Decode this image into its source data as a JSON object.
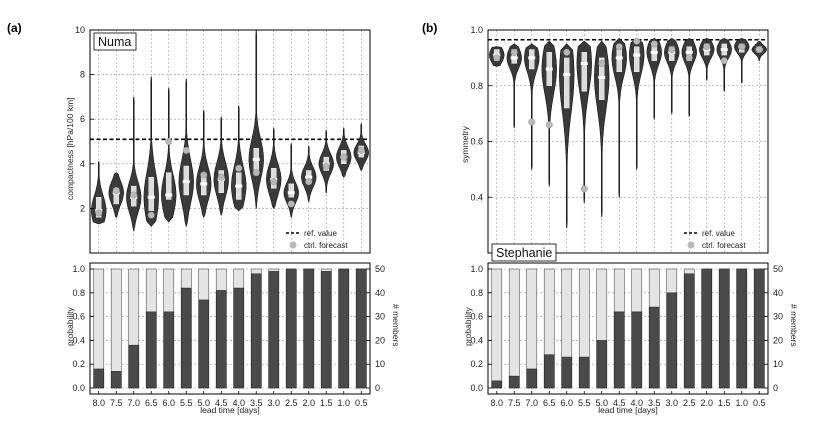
{
  "chart_data": [
    {
      "panel_label": "(a)",
      "storm": "Numa",
      "type": "violin",
      "ylabel": "compactness [hPa/100 km]",
      "ylim": [
        0,
        10
      ],
      "yticks": [
        "2",
        "4",
        "6",
        "8",
        "10"
      ],
      "categories": [
        "8.0",
        "7.5",
        "7.0",
        "6.5",
        "6.0",
        "5.5",
        "5.0",
        "4.5",
        "4.0",
        "3.5",
        "3.0",
        "2.5",
        "2.0",
        "1.5",
        "1.0",
        "0.5"
      ],
      "ref_value": 5.1,
      "legend": {
        "ref": "ref. value",
        "ctrl": "ctrl. forecast"
      },
      "violins": [
        {
          "min": 1.3,
          "max": 4.1,
          "q1": 1.6,
          "median": 1.9,
          "q3": 2.5,
          "ctrl": 1.8
        },
        {
          "min": 1.6,
          "max": 3.6,
          "q1": 2.2,
          "median": 2.7,
          "q3": 2.9,
          "ctrl": 2.8
        },
        {
          "min": 1.0,
          "max": 7.0,
          "q1": 2.1,
          "median": 2.5,
          "q3": 3.0,
          "ctrl": 2.6
        },
        {
          "min": 1.2,
          "max": 7.9,
          "q1": 1.9,
          "median": 2.5,
          "q3": 3.4,
          "ctrl": 1.7
        },
        {
          "min": 1.4,
          "max": 7.4,
          "q1": 2.4,
          "median": 2.6,
          "q3": 3.6,
          "ctrl": 5.0
        },
        {
          "min": 1.2,
          "max": 7.8,
          "q1": 2.6,
          "median": 3.2,
          "q3": 3.9,
          "ctrl": 4.6
        },
        {
          "min": 1.6,
          "max": 6.4,
          "q1": 2.6,
          "median": 3.1,
          "q3": 3.6,
          "ctrl": 3.5
        },
        {
          "min": 1.7,
          "max": 6.1,
          "q1": 2.7,
          "median": 3.3,
          "q3": 3.7,
          "ctrl": 3.4
        },
        {
          "min": 1.9,
          "max": 6.6,
          "q1": 2.4,
          "median": 3.0,
          "q3": 3.6,
          "ctrl": 3.8
        },
        {
          "min": 2.0,
          "max": 10.0,
          "q1": 3.5,
          "median": 4.2,
          "q3": 4.7,
          "ctrl": 3.6
        },
        {
          "min": 2.0,
          "max": 5.6,
          "q1": 2.9,
          "median": 3.3,
          "q3": 3.8,
          "ctrl": 3.2
        },
        {
          "min": 1.6,
          "max": 4.9,
          "q1": 2.5,
          "median": 2.7,
          "q3": 3.1,
          "ctrl": 2.2
        },
        {
          "min": 2.3,
          "max": 4.8,
          "q1": 3.1,
          "median": 3.4,
          "q3": 3.7,
          "ctrl": 3.2
        },
        {
          "min": 2.7,
          "max": 5.5,
          "q1": 3.7,
          "median": 4.0,
          "q3": 4.3,
          "ctrl": 3.9
        },
        {
          "min": 3.4,
          "max": 5.6,
          "q1": 4.0,
          "median": 4.3,
          "q3": 4.6,
          "ctrl": 4.3
        },
        {
          "min": 3.7,
          "max": 5.8,
          "q1": 4.3,
          "median": 4.5,
          "q3": 4.8,
          "ctrl": 4.6
        }
      ],
      "bars": {
        "ylabel": "probability",
        "ylabel2": "# members",
        "yticks": [
          "0.0",
          "0.2",
          "0.4",
          "0.6",
          "0.8",
          "1.0"
        ],
        "yticks2": [
          "0",
          "10",
          "20",
          "30",
          "40",
          "50"
        ],
        "xlabel": "lead time [days]",
        "probability": [
          0.16,
          0.14,
          0.36,
          0.64,
          0.64,
          0.84,
          0.74,
          0.82,
          0.84,
          0.96,
          0.98,
          1.0,
          1.0,
          0.98,
          1.0,
          1.0
        ]
      }
    },
    {
      "panel_label": "(b)",
      "storm": "Stephanie",
      "type": "violin",
      "ylabel": "symmetry",
      "ylim": [
        0.2,
        1.0
      ],
      "yticks": [
        "0.4",
        "0.6",
        "0.8",
        "1.0"
      ],
      "categories": [
        "8.0",
        "7.5",
        "7.0",
        "6.5",
        "6.0",
        "5.5",
        "5.0",
        "4.5",
        "4.0",
        "3.5",
        "3.0",
        "2.5",
        "2.0",
        "1.5",
        "1.0",
        "0.5"
      ],
      "ref_value": 0.965,
      "legend": {
        "ref": "ref. value",
        "ctrl": "ctrl. forecast"
      },
      "violins": [
        {
          "min": 0.87,
          "max": 0.94,
          "q1": 0.89,
          "median": 0.91,
          "q3": 0.93,
          "ctrl": 0.9
        },
        {
          "min": 0.65,
          "max": 0.95,
          "q1": 0.88,
          "median": 0.9,
          "q3": 0.93,
          "ctrl": 0.92
        },
        {
          "min": 0.5,
          "max": 0.95,
          "q1": 0.86,
          "median": 0.9,
          "q3": 0.93,
          "ctrl": 0.67
        },
        {
          "min": 0.44,
          "max": 0.96,
          "q1": 0.8,
          "median": 0.86,
          "q3": 0.92,
          "ctrl": 0.66
        },
        {
          "min": 0.29,
          "max": 0.95,
          "q1": 0.72,
          "median": 0.84,
          "q3": 0.9,
          "ctrl": 0.92
        },
        {
          "min": 0.38,
          "max": 0.96,
          "q1": 0.78,
          "median": 0.88,
          "q3": 0.92,
          "ctrl": 0.43
        },
        {
          "min": 0.33,
          "max": 0.96,
          "q1": 0.75,
          "median": 0.83,
          "q3": 0.9,
          "ctrl": 0.88
        },
        {
          "min": 0.4,
          "max": 0.97,
          "q1": 0.85,
          "median": 0.9,
          "q3": 0.94,
          "ctrl": 0.94
        },
        {
          "min": 0.5,
          "max": 0.97,
          "q1": 0.85,
          "median": 0.91,
          "q3": 0.94,
          "ctrl": 0.96
        },
        {
          "min": 0.68,
          "max": 0.97,
          "q1": 0.89,
          "median": 0.92,
          "q3": 0.95,
          "ctrl": 0.95
        },
        {
          "min": 0.7,
          "max": 0.97,
          "q1": 0.89,
          "median": 0.92,
          "q3": 0.94,
          "ctrl": 0.93
        },
        {
          "min": 0.69,
          "max": 0.97,
          "q1": 0.89,
          "median": 0.92,
          "q3": 0.94,
          "ctrl": 0.9
        },
        {
          "min": 0.82,
          "max": 0.97,
          "q1": 0.91,
          "median": 0.93,
          "q3": 0.95,
          "ctrl": 0.94
        },
        {
          "min": 0.78,
          "max": 0.97,
          "q1": 0.91,
          "median": 0.93,
          "q3": 0.95,
          "ctrl": 0.89
        },
        {
          "min": 0.81,
          "max": 0.97,
          "q1": 0.92,
          "median": 0.94,
          "q3": 0.95,
          "ctrl": 0.94
        },
        {
          "min": 0.89,
          "max": 0.96,
          "q1": 0.92,
          "median": 0.93,
          "q3": 0.94,
          "ctrl": 0.93
        }
      ],
      "bars": {
        "ylabel": "probability",
        "ylabel2": "# members",
        "yticks": [
          "0.0",
          "0.2",
          "0.4",
          "0.6",
          "0.8",
          "1.0"
        ],
        "yticks2": [
          "0",
          "10",
          "20",
          "30",
          "40",
          "50"
        ],
        "xlabel": "lead time [days]",
        "probability": [
          0.06,
          0.1,
          0.16,
          0.28,
          0.26,
          0.26,
          0.4,
          0.64,
          0.64,
          0.68,
          0.8,
          0.96,
          1.0,
          1.0,
          1.0,
          1.0
        ]
      }
    }
  ],
  "colors": {
    "violin": "#3a3a3a",
    "bar_dark": "#4a4a4a",
    "bar_light": "#e4e4e4",
    "ctrl": "#b8b8b8",
    "median_box": "#ffffff"
  }
}
